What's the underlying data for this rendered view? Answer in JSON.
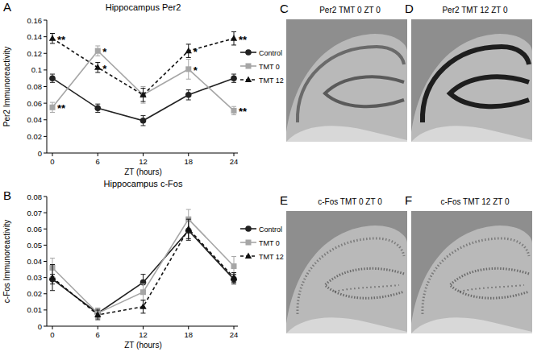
{
  "chart_data": [
    {
      "type": "line",
      "panel_label": "A",
      "title": "Hippocampus Per2",
      "x_label": "ZT (hours)",
      "y_label": "Per2 Immunoreactivity",
      "x": [
        0,
        6,
        12,
        18,
        24
      ],
      "xlim": [
        0,
        24
      ],
      "xticks": [
        0,
        6,
        12,
        18,
        24
      ],
      "ylim": [
        0,
        0.16
      ],
      "yticks": [
        0,
        0.02,
        0.04,
        0.06,
        0.08,
        0.1,
        0.12,
        0.14,
        0.16
      ],
      "legend": "right",
      "series": [
        {
          "name": "Control",
          "color": "#222222",
          "marker": "circle",
          "line_style": "solid",
          "values": [
            0.09,
            0.054,
            0.039,
            0.07,
            0.09
          ],
          "errors": [
            0.005,
            0.005,
            0.006,
            0.006,
            0.005
          ]
        },
        {
          "name": "TMT 0",
          "color": "#a6a6a6",
          "marker": "square",
          "line_style": "solid",
          "values": [
            0.055,
            0.123,
            0.07,
            0.101,
            0.051
          ],
          "errors": [
            0.006,
            0.006,
            0.01,
            0.012,
            0.005
          ]
        },
        {
          "name": "TMT 12",
          "color": "#111111",
          "marker": "triangle",
          "line_style": "dashed",
          "values": [
            0.138,
            0.103,
            0.07,
            0.123,
            0.138
          ],
          "errors": [
            0.006,
            0.006,
            0.008,
            0.008,
            0.008
          ]
        }
      ],
      "annotations": [
        {
          "text": "**",
          "series": 2,
          "index": 0
        },
        {
          "text": "**",
          "series": 1,
          "index": 0
        },
        {
          "text": "*",
          "series": 1,
          "index": 1
        },
        {
          "text": "*",
          "series": 2,
          "index": 1
        },
        {
          "text": "*",
          "series": 2,
          "index": 3
        },
        {
          "text": "*",
          "series": 1,
          "index": 3
        },
        {
          "text": "**",
          "series": 2,
          "index": 4
        },
        {
          "text": "**",
          "series": 1,
          "index": 4
        }
      ]
    },
    {
      "type": "line",
      "panel_label": "B",
      "title": "Hippocampus c-Fos",
      "x_label": "ZT (hours)",
      "y_label": "c-Fos Immunoreactivity",
      "x": [
        0,
        6,
        12,
        18,
        24
      ],
      "xlim": [
        0,
        24
      ],
      "xticks": [
        0,
        6,
        12,
        18,
        24
      ],
      "ylim": [
        0,
        0.08
      ],
      "yticks": [
        0,
        0.01,
        0.02,
        0.03,
        0.04,
        0.05,
        0.06,
        0.07,
        0.08
      ],
      "legend": "right",
      "series": [
        {
          "name": "Control",
          "color": "#222222",
          "marker": "circle",
          "line_style": "solid",
          "values": [
            0.029,
            0.008,
            0.027,
            0.059,
            0.029
          ],
          "errors": [
            0.003,
            0.003,
            0.005,
            0.006,
            0.003
          ]
        },
        {
          "name": "TMT 0",
          "color": "#a6a6a6",
          "marker": "square",
          "line_style": "solid",
          "values": [
            0.036,
            0.008,
            0.021,
            0.066,
            0.037
          ],
          "errors": [
            0.006,
            0.003,
            0.005,
            0.006,
            0.006
          ]
        },
        {
          "name": "TMT 12",
          "color": "#111111",
          "marker": "triangle",
          "line_style": "dashed",
          "values": [
            0.03,
            0.007,
            0.012,
            0.06,
            0.03
          ],
          "errors": [
            0.008,
            0.003,
            0.004,
            0.006,
            0.003
          ]
        }
      ]
    }
  ],
  "image_panels": [
    {
      "label": "C",
      "title": "Per2 TMT 0 ZT 0"
    },
    {
      "label": "D",
      "title": "Per2 TMT 12 ZT 0"
    },
    {
      "label": "E",
      "title": "c-Fos TMT 0 ZT 0"
    },
    {
      "label": "F",
      "title": "c-Fos TMT 12 ZT 0"
    }
  ]
}
